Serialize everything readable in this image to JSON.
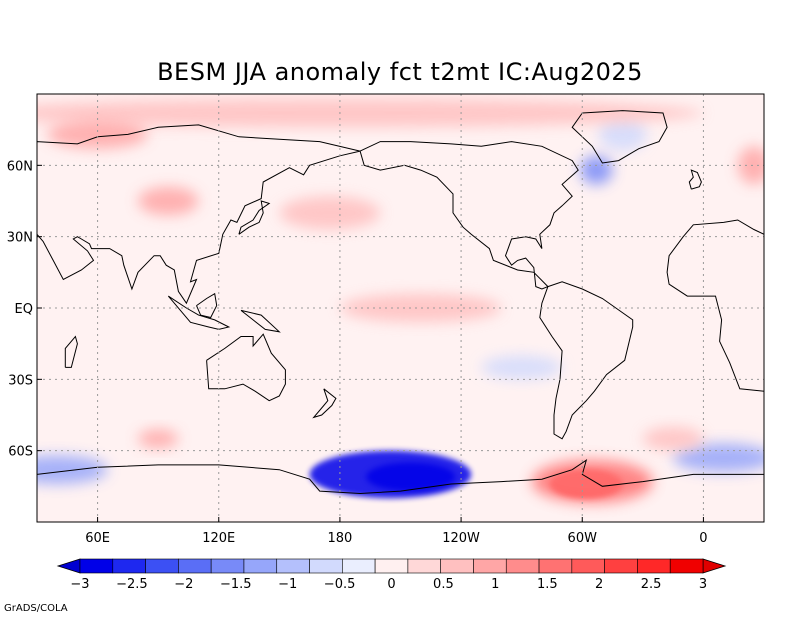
{
  "title": "BESM   JJA anomaly fct t2mt IC:Aug2025",
  "credit": "GrADS/COLA",
  "map": {
    "projection": "latlon",
    "lon_range": [
      30,
      390
    ],
    "lat_range": [
      -90,
      90
    ],
    "lat_ticks": [
      {
        "label": "60N",
        "lat": 60
      },
      {
        "label": "30N",
        "lat": 30
      },
      {
        "label": "EQ",
        "lat": 0
      },
      {
        "label": "30S",
        "lat": -30
      },
      {
        "label": "60S",
        "lat": -60
      }
    ],
    "lon_ticks": [
      {
        "label": "60E",
        "lon": 60
      },
      {
        "label": "120E",
        "lon": 120
      },
      {
        "label": "180",
        "lon": 180
      },
      {
        "label": "120W",
        "lon": 240
      },
      {
        "label": "60W",
        "lon": 300
      },
      {
        "label": "0",
        "lon": 360
      }
    ]
  },
  "colorbar": {
    "labels": [
      "−3",
      "−2.5",
      "−2",
      "−1.5",
      "−1",
      "−0.5",
      "0",
      "0.5",
      "1",
      "1.5",
      "2",
      "2.5",
      "3"
    ],
    "colors": [
      "#0000e8",
      "#1e28f0",
      "#3c50f4",
      "#5a6ef6",
      "#788af8",
      "#96a6fa",
      "#b4c0fc",
      "#d2dafd",
      "#eaeefe",
      "#fff0f0",
      "#ffd8d8",
      "#ffc0c0",
      "#ffa6a6",
      "#ff8c8c",
      "#ff7272",
      "#ff5a5a",
      "#ff4040",
      "#ff2828",
      "#f00000"
    ],
    "left_arrow_color": "#0000d0",
    "right_arrow_color": "#e00000"
  },
  "anomalies": [
    {
      "name": "ross-sea-cold",
      "lon": 205,
      "lat": -70,
      "rx": 40,
      "ry": 10,
      "value": -3
    },
    {
      "name": "ross-sea-cold-core",
      "lon": 215,
      "lat": -71,
      "rx": 22,
      "ry": 6,
      "value": -3
    },
    {
      "name": "antarctic-peninsula-warm",
      "lon": 302,
      "lat": -74,
      "rx": 18,
      "ry": 6,
      "value": 2.5
    },
    {
      "name": "antarctic-peninsula-warm-halo",
      "lon": 305,
      "lat": -73,
      "rx": 30,
      "ry": 9,
      "value": 1.5
    },
    {
      "name": "southern-ocean-cold-west",
      "lon": 40,
      "lat": -68,
      "rx": 25,
      "ry": 6,
      "value": -1
    },
    {
      "name": "southern-ocean-cold-east",
      "lon": 370,
      "lat": -63,
      "rx": 25,
      "ry": 6,
      "value": -1
    },
    {
      "name": "greenland-cold",
      "lon": 320,
      "lat": 73,
      "rx": 12,
      "ry": 7,
      "value": -0.5
    },
    {
      "name": "labrador-cold",
      "lon": 307,
      "lat": 58,
      "rx": 8,
      "ry": 6,
      "value": -1.5
    },
    {
      "name": "arctic-warm",
      "lon": 180,
      "lat": 82,
      "rx": 180,
      "ry": 6,
      "value": 0.5
    },
    {
      "name": "barents-warm",
      "lon": 60,
      "lat": 73,
      "rx": 25,
      "ry": 6,
      "value": 1
    },
    {
      "name": "mongolia-warm",
      "lon": 95,
      "lat": 45,
      "rx": 15,
      "ry": 6,
      "value": 1
    },
    {
      "name": "europe-warm",
      "lon": 385,
      "lat": 60,
      "rx": 8,
      "ry": 8,
      "value": 1
    },
    {
      "name": "north-pacific-warm",
      "lon": 175,
      "lat": 40,
      "rx": 25,
      "ry": 7,
      "value": 0.5
    },
    {
      "name": "south-atlantic-warm",
      "lon": 345,
      "lat": -55,
      "rx": 15,
      "ry": 5,
      "value": 0.5
    },
    {
      "name": "s-indian-warm",
      "lon": 90,
      "lat": -55,
      "rx": 10,
      "ry": 4,
      "value": 1
    },
    {
      "name": "equatorial-pacific-warm",
      "lon": 220,
      "lat": 0,
      "rx": 40,
      "ry": 6,
      "value": 0.5
    },
    {
      "name": "south-pacific-cool",
      "lon": 270,
      "lat": -25,
      "rx": 20,
      "ry": 5,
      "value": -0.5
    }
  ]
}
